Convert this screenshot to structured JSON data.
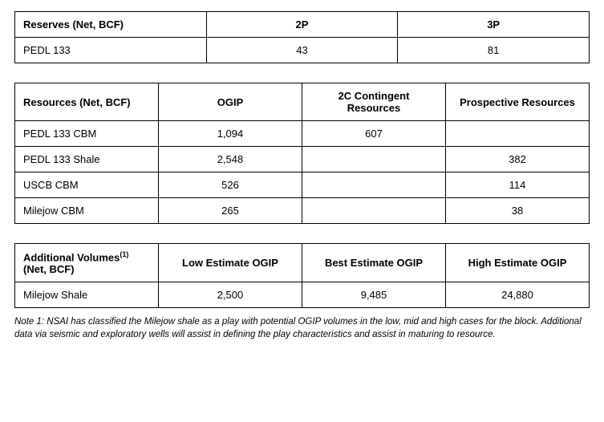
{
  "table1": {
    "headers": [
      "Reserves (Net, BCF)",
      "2P",
      "3P"
    ],
    "col_widths": [
      "33.3%",
      "33.3%",
      "33.3%"
    ],
    "rows": [
      {
        "label": "PEDL 133",
        "cells": [
          "43",
          "81"
        ]
      }
    ]
  },
  "table2": {
    "headers": [
      "Resources (Net, BCF)",
      "OGIP",
      "2C Contingent Resources",
      "Prospective Resources"
    ],
    "col_widths": [
      "25%",
      "25%",
      "25%",
      "25%"
    ],
    "rows": [
      {
        "label": "PEDL 133 CBM",
        "cells": [
          "1,094",
          "607",
          ""
        ]
      },
      {
        "label": "PEDL 133 Shale",
        "cells": [
          "2,548",
          "",
          "382"
        ]
      },
      {
        "label": "USCB CBM",
        "cells": [
          "526",
          "",
          "114"
        ]
      },
      {
        "label": "Milejow CBM",
        "cells": [
          "265",
          "",
          "38"
        ]
      }
    ]
  },
  "table3": {
    "header_first_html": "Additional Volumes<sup>(1)</sup> (Net, BCF)",
    "headers_rest": [
      "Low Estimate OGIP",
      "Best Estimate OGIP",
      "High Estimate OGIP"
    ],
    "col_widths": [
      "25%",
      "25%",
      "25%",
      "25%"
    ],
    "rows": [
      {
        "label": "Milejow Shale",
        "cells": [
          "2,500",
          "9,485",
          "24,880"
        ]
      }
    ]
  },
  "note": "Note 1: NSAI has classified the Milejow shale as a play with potential OGIP volumes in the low, mid and high cases for the block. Additional data via seismic and exploratory wells will assist in defining the play characteristics and assist in maturing to resource."
}
